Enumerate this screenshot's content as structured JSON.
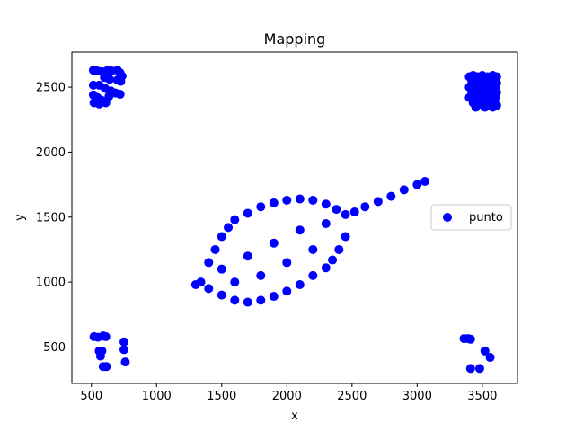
{
  "chart_data": {
    "type": "scatter",
    "title": "Mapping",
    "xlabel": "x",
    "ylabel": "y",
    "xlim": [
      350,
      3770
    ],
    "ylim": [
      220,
      2770
    ],
    "xticks": [
      500,
      1000,
      1500,
      2000,
      2500,
      3000,
      3500
    ],
    "yticks": [
      500,
      1000,
      1500,
      2000,
      2500
    ],
    "grid": false,
    "legend_position": "center-right",
    "series": [
      {
        "name": "punto",
        "color": "#0000ff",
        "clusters": {
          "top_left": [
            [
              515,
              2630
            ],
            [
              545,
              2625
            ],
            [
              580,
              2620
            ],
            [
              625,
              2630
            ],
            [
              655,
              2625
            ],
            [
              700,
              2630
            ],
            [
              720,
              2610
            ],
            [
              735,
              2585
            ],
            [
              600,
              2575
            ],
            [
              640,
              2560
            ],
            [
              700,
              2555
            ],
            [
              725,
              2545
            ],
            [
              560,
              2515
            ],
            [
              605,
              2490
            ],
            [
              515,
              2515
            ],
            [
              650,
              2470
            ],
            [
              685,
              2455
            ],
            [
              720,
              2445
            ],
            [
              635,
              2430
            ],
            [
              515,
              2440
            ],
            [
              545,
              2420
            ],
            [
              575,
              2400
            ],
            [
              610,
              2380
            ],
            [
              520,
              2380
            ],
            [
              560,
              2370
            ]
          ],
          "top_right": [
            [
              3400,
              2580
            ],
            [
              3430,
              2590
            ],
            [
              3460,
              2580
            ],
            [
              3500,
              2590
            ],
            [
              3540,
              2580
            ],
            [
              3580,
              2590
            ],
            [
              3610,
              2580
            ],
            [
              3420,
              2540
            ],
            [
              3470,
              2540
            ],
            [
              3520,
              2530
            ],
            [
              3570,
              2540
            ],
            [
              3610,
              2530
            ],
            [
              3400,
              2500
            ],
            [
              3450,
              2490
            ],
            [
              3500,
              2500
            ],
            [
              3550,
              2490
            ],
            [
              3600,
              2500
            ],
            [
              3420,
              2460
            ],
            [
              3470,
              2450
            ],
            [
              3520,
              2460
            ],
            [
              3570,
              2450
            ],
            [
              3610,
              2460
            ],
            [
              3400,
              2420
            ],
            [
              3450,
              2410
            ],
            [
              3500,
              2420
            ],
            [
              3550,
              2410
            ],
            [
              3600,
              2420
            ],
            [
              3430,
              2380
            ],
            [
              3480,
              2370
            ],
            [
              3530,
              2380
            ],
            [
              3580,
              2370
            ],
            [
              3610,
              2360
            ],
            [
              3450,
              2345
            ],
            [
              3520,
              2345
            ],
            [
              3580,
              2345
            ]
          ],
          "bottom_left": [
            [
              520,
              580
            ],
            [
              550,
              575
            ],
            [
              590,
              585
            ],
            [
              610,
              580
            ],
            [
              560,
              470
            ],
            [
              580,
              470
            ],
            [
              570,
              430
            ],
            [
              750,
              540
            ],
            [
              750,
              480
            ],
            [
              760,
              385
            ],
            [
              590,
              350
            ],
            [
              615,
              350
            ]
          ],
          "bottom_right": [
            [
              3360,
              565
            ],
            [
              3390,
              565
            ],
            [
              3410,
              560
            ],
            [
              3520,
              470
            ],
            [
              3560,
              420
            ],
            [
              3410,
              335
            ],
            [
              3480,
              335
            ]
          ],
          "center_body": [
            [
              1300,
              980
            ],
            [
              1340,
              1000
            ],
            [
              1400,
              1150
            ],
            [
              1450,
              1250
            ],
            [
              1500,
              1350
            ],
            [
              1550,
              1420
            ],
            [
              1600,
              1480
            ],
            [
              1700,
              1530
            ],
            [
              1800,
              1580
            ],
            [
              1900,
              1610
            ],
            [
              2000,
              1630
            ],
            [
              2100,
              1640
            ],
            [
              2200,
              1630
            ],
            [
              2300,
              1600
            ],
            [
              2380,
              1560
            ],
            [
              2450,
              1520
            ],
            [
              2520,
              1540
            ],
            [
              2600,
              1580
            ],
            [
              2700,
              1620
            ],
            [
              2800,
              1660
            ],
            [
              2900,
              1710
            ],
            [
              3000,
              1750
            ],
            [
              3060,
              1775
            ],
            [
              2450,
              1350
            ],
            [
              2400,
              1250
            ],
            [
              2350,
              1170
            ],
            [
              2300,
              1110
            ],
            [
              2200,
              1050
            ],
            [
              2100,
              980
            ],
            [
              2000,
              930
            ],
            [
              1900,
              890
            ],
            [
              1800,
              860
            ],
            [
              1700,
              845
            ],
            [
              1600,
              860
            ],
            [
              1500,
              900
            ],
            [
              1400,
              950
            ],
            [
              1500,
              1100
            ],
            [
              1700,
              1200
            ],
            [
              1900,
              1300
            ],
            [
              2100,
              1400
            ],
            [
              2300,
              1450
            ],
            [
              1600,
              1000
            ],
            [
              1800,
              1050
            ],
            [
              2000,
              1150
            ],
            [
              2200,
              1250
            ]
          ]
        }
      }
    ]
  }
}
